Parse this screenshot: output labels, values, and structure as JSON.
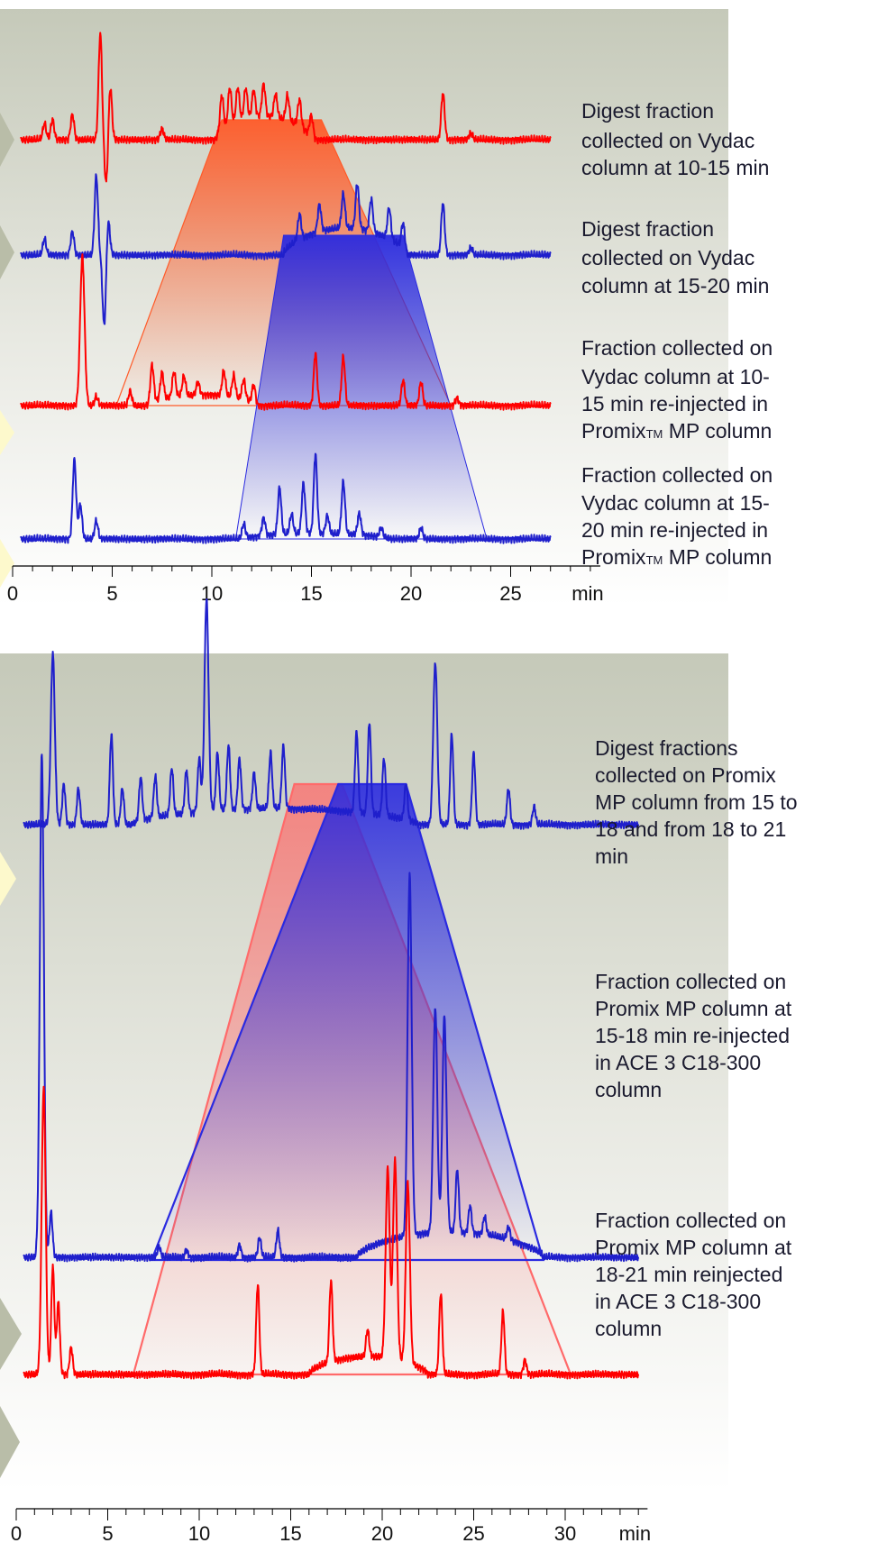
{
  "chart_data": [
    {
      "type": "line",
      "title": "",
      "xlabel": "min",
      "x_ticks": [
        "0",
        "5",
        "10",
        "15",
        "20",
        "25"
      ],
      "xlim": [
        0,
        29.5
      ],
      "grid": false,
      "series": [
        {
          "label": [
            "Digest fraction",
            "collected on Vydac",
            "column at 10-15 min"
          ],
          "color": "#ff0000",
          "baseline": 155,
          "peaks": [
            [
              1.6,
              18
            ],
            [
              2.0,
              22
            ],
            [
              3.0,
              28
            ],
            [
              4.4,
              118
            ],
            [
              4.7,
              -50
            ],
            [
              4.9,
              60
            ],
            [
              7.5,
              12
            ],
            [
              10.5,
              40
            ],
            [
              10.9,
              42
            ],
            [
              11.3,
              38
            ],
            [
              11.7,
              34
            ],
            [
              12.1,
              30
            ],
            [
              12.6,
              36
            ],
            [
              13.2,
              26
            ],
            [
              13.8,
              28
            ],
            [
              14.4,
              30
            ],
            [
              15.0,
              26
            ],
            [
              21.6,
              52
            ],
            [
              23.0,
              7
            ]
          ],
          "hump": [
            [
              10.2,
              15.0,
              26
            ]
          ]
        },
        {
          "label": [
            "Digest fraction",
            "collected on Vydac",
            "column at 15-20 min"
          ],
          "color": "#1f1fcc",
          "baseline": 283,
          "peaks": [
            [
              1.6,
              18
            ],
            [
              3.0,
              26
            ],
            [
              4.2,
              88
            ],
            [
              4.6,
              -80
            ],
            [
              4.8,
              40
            ],
            [
              14.4,
              28
            ],
            [
              15.4,
              30
            ],
            [
              16.6,
              38
            ],
            [
              17.3,
              50
            ],
            [
              18.0,
              36
            ],
            [
              18.9,
              34
            ],
            [
              19.6,
              28
            ],
            [
              21.6,
              58
            ],
            [
              23.0,
              8
            ]
          ],
          "hump": [
            [
              13.6,
              19.8,
              30
            ]
          ]
        },
        {
          "label": [
            "Fraction collected on",
            "Vydac  column at 10-",
            "15 min re-injected in",
            "Promix™ MP column"
          ],
          "color": "#ff0000",
          "baseline": 450,
          "peaks": [
            [
              3.5,
              165
            ],
            [
              4.2,
              10
            ],
            [
              5.9,
              16
            ],
            [
              7.0,
              42
            ],
            [
              7.5,
              30
            ],
            [
              8.1,
              28
            ],
            [
              8.6,
              22
            ],
            [
              9.3,
              14
            ],
            [
              10.6,
              28
            ],
            [
              11.1,
              24
            ],
            [
              11.6,
              22
            ],
            [
              12.1,
              20
            ],
            [
              15.2,
              58
            ],
            [
              16.6,
              54
            ],
            [
              19.6,
              28
            ],
            [
              20.5,
              26
            ],
            [
              22.3,
              8
            ]
          ],
          "hump": [
            [
              6.8,
              12.3,
              12
            ]
          ]
        },
        {
          "label": [
            "Fraction collected on",
            "Vydac  column at 15-",
            "20 min re-injected in",
            "Promix™ MP column"
          ],
          "color": "#1f1fcc",
          "baseline": 598,
          "peaks": [
            [
              3.1,
              88
            ],
            [
              3.4,
              38
            ],
            [
              4.2,
              20
            ],
            [
              11.6,
              16
            ],
            [
              12.6,
              20
            ],
            [
              13.4,
              52
            ],
            [
              14.0,
              22
            ],
            [
              14.6,
              56
            ],
            [
              15.2,
              88
            ],
            [
              15.8,
              20
            ],
            [
              16.6,
              58
            ],
            [
              17.4,
              24
            ],
            [
              18.5,
              10
            ],
            [
              20.5,
              12
            ]
          ],
          "hump": [
            [
              11.5,
              19.0,
              6
            ]
          ]
        }
      ],
      "highlights": [
        {
          "color": "#ff5a28",
          "from_series": 0,
          "top": [
            10.5,
            15.5
          ],
          "bottom": [
            5.2,
            22.0
          ]
        },
        {
          "color": "#2a2ae0",
          "from_series": 1,
          "top": [
            13.6,
            19.6
          ],
          "bottom": [
            11.2,
            23.8
          ]
        }
      ]
    },
    {
      "type": "line",
      "title": "",
      "xlabel": "min",
      "x_ticks": [
        "0",
        "5",
        "10",
        "15",
        "20",
        "25",
        "30"
      ],
      "xlim": [
        0,
        34.5
      ],
      "grid": false,
      "series": [
        {
          "label": [
            "Digest fractions",
            "collected on Promix",
            "MP column from 15 to",
            "18 and  from 18 to 21",
            "min"
          ],
          "color": "#1f1fcc",
          "baseline": 915,
          "peaks": [
            [
              2.0,
              190
            ],
            [
              2.6,
              45
            ],
            [
              3.4,
              40
            ],
            [
              5.2,
              100
            ],
            [
              5.8,
              40
            ],
            [
              6.8,
              48
            ],
            [
              7.6,
              46
            ],
            [
              8.5,
              52
            ],
            [
              9.3,
              48
            ],
            [
              10.0,
              60
            ],
            [
              10.4,
              236
            ],
            [
              11.0,
              64
            ],
            [
              11.6,
              72
            ],
            [
              12.2,
              56
            ],
            [
              13.0,
              40
            ],
            [
              13.9,
              62
            ],
            [
              14.6,
              70
            ],
            [
              18.6,
              90
            ],
            [
              19.3,
              102
            ],
            [
              20.1,
              64
            ],
            [
              21.3,
              40
            ],
            [
              22.9,
              180
            ],
            [
              23.8,
              100
            ],
            [
              25.0,
              80
            ],
            [
              26.9,
              40
            ],
            [
              28.3,
              20
            ]
          ],
          "hump": [
            [
              6.3,
              22.0,
              18
            ]
          ]
        },
        {
          "label": [
            "Fraction collected on",
            "Promix MP  column at",
            "15-18 min re-injected",
            "in ACE 3 C18-300",
            "column"
          ],
          "color": "#1f1fcc",
          "baseline": 1395,
          "peaks": [
            [
              1.4,
              560
            ],
            [
              1.9,
              50
            ],
            [
              7.8,
              12
            ],
            [
              9.3,
              8
            ],
            [
              12.2,
              14
            ],
            [
              13.3,
              22
            ],
            [
              14.3,
              30
            ],
            [
              21.5,
              400
            ],
            [
              22.9,
              250
            ],
            [
              23.4,
              240
            ],
            [
              24.1,
              70
            ],
            [
              24.8,
              30
            ],
            [
              25.6,
              20
            ],
            [
              26.9,
              14
            ]
          ],
          "hump": [
            [
              18.6,
              28.8,
              28
            ]
          ]
        },
        {
          "label": [
            "Fraction collected on",
            "Promix MP  column at",
            "18-21 min reinjected",
            "in ACE 3 C18-300",
            "column"
          ],
          "color": "#ff0000",
          "baseline": 1525,
          "peaks": [
            [
              1.5,
              316
            ],
            [
              2.0,
              120
            ],
            [
              2.3,
              80
            ],
            [
              3.0,
              30
            ],
            [
              13.2,
              100
            ],
            [
              17.2,
              90
            ],
            [
              19.2,
              30
            ],
            [
              20.3,
              210
            ],
            [
              20.7,
              220
            ],
            [
              21.4,
              200
            ],
            [
              23.2,
              90
            ],
            [
              26.6,
              70
            ],
            [
              27.8,
              16
            ]
          ],
          "hump": [
            [
              16.0,
              22.5,
              20
            ]
          ]
        }
      ],
      "highlights": [
        {
          "color": "#ff6a6a",
          "from_series": 0,
          "top": [
            15.2,
            17.8
          ],
          "bottom": [
            6.4,
            30.3
          ]
        },
        {
          "color": "#2a2ae0",
          "from_series": 0,
          "top": [
            17.6,
            21.3
          ],
          "bottom": [
            7.4,
            28.8
          ]
        }
      ]
    }
  ]
}
